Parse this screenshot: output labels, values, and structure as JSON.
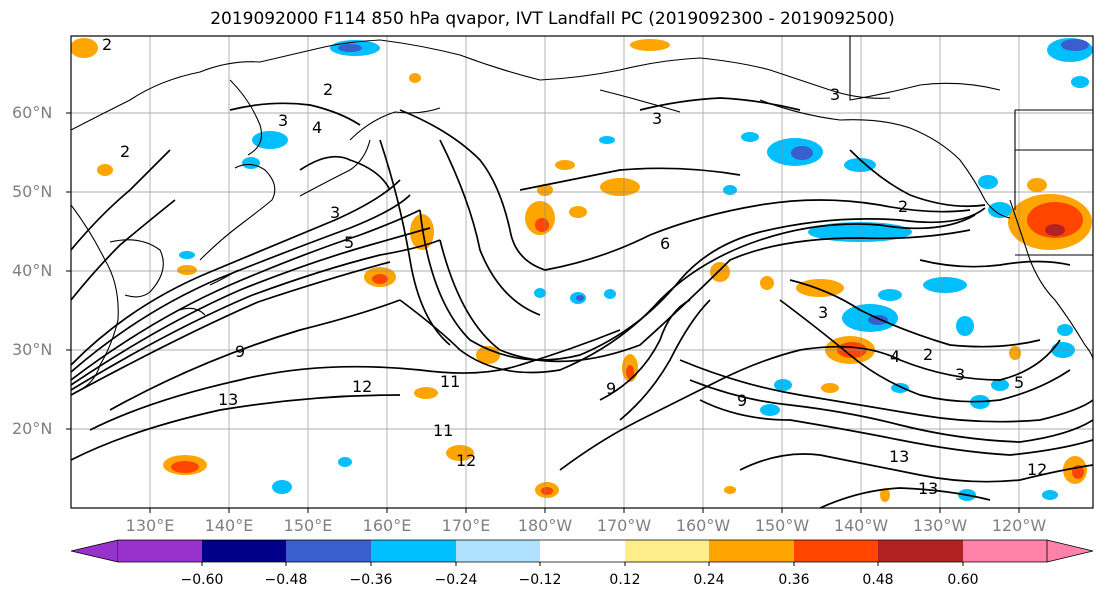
{
  "title": "2019092000 F114 850 hPa qvapor, IVT Landfall PC (2019092300 - 2019092500)",
  "lat_labels": [
    "60°N",
    "50°N",
    "40°N",
    "30°N",
    "20°N"
  ],
  "lon_labels": [
    "130°E",
    "140°E",
    "150°E",
    "160°E",
    "170°E",
    "180°W",
    "170°W",
    "160°W",
    "150°W",
    "140°W",
    "130°W",
    "120°W"
  ],
  "contour_labels": [
    "2",
    "2",
    "3",
    "4",
    "3",
    "3",
    "2",
    "3",
    "5",
    "9",
    "13",
    "12",
    "11",
    "9",
    "9",
    "6",
    "2",
    "3",
    "4",
    "2",
    "3",
    "5",
    "13",
    "12",
    "13",
    "11",
    "12"
  ],
  "colorbar": {
    "ticks": [
      "−0.60",
      "−0.48",
      "−0.36",
      "−0.24",
      "−0.12",
      "0.12",
      "0.24",
      "0.36",
      "0.48",
      "0.60"
    ],
    "colors": [
      "#9932cc",
      "#00008b",
      "#3a5fcd",
      "#00bfff",
      "#b0e2ff",
      "#ffffff",
      "#ffec8b",
      "#ffa500",
      "#ff4500",
      "#b22222",
      "#ff82ab"
    ]
  },
  "colors": {
    "grid": "#808080",
    "axis_label": "#808080",
    "contour": "#000000"
  }
}
